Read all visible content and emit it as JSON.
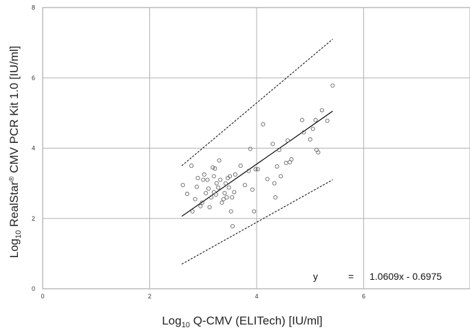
{
  "chart_data": {
    "type": "scatter",
    "xlabel": {
      "base": "Log",
      "sub": "10",
      "rest": " Q-CMV (ELITech) [IU/ml]"
    },
    "ylabel": {
      "base": "Log",
      "sub": "10",
      "mid": " RealStar",
      "sup": "®",
      "rest": " CMV PCR Kit 1.0 [IU/ml]"
    },
    "xlim": [
      0,
      8
    ],
    "ylim": [
      0,
      8
    ],
    "x_ticks": [
      "0",
      "2",
      "4",
      "6"
    ],
    "y_ticks": [
      "0",
      "2",
      "4",
      "6",
      "8"
    ],
    "grid": true,
    "colors": {
      "points": "#666666",
      "regression": "#111111",
      "limits": "#222222",
      "grid": "#b0b0b0"
    },
    "equation": {
      "lhs": "y",
      "op": "=",
      "rhs": "1.0609x - 0.6975"
    },
    "regression": {
      "slope": 1.0609,
      "intercept": -0.6975,
      "x_range": [
        2.6,
        5.42
      ]
    },
    "limit_upper": {
      "points": [
        [
          2.6,
          3.5
        ],
        [
          5.42,
          7.1
        ]
      ]
    },
    "limit_lower": {
      "points": [
        [
          2.6,
          0.7
        ],
        [
          5.42,
          3.1
        ]
      ]
    },
    "points": [
      [
        2.62,
        2.95
      ],
      [
        2.7,
        2.7
      ],
      [
        2.78,
        3.5
      ],
      [
        2.8,
        2.2
      ],
      [
        2.85,
        2.55
      ],
      [
        2.88,
        2.9
      ],
      [
        2.9,
        3.15
      ],
      [
        2.95,
        2.35
      ],
      [
        2.98,
        2.45
      ],
      [
        3.0,
        3.1
      ],
      [
        3.02,
        3.25
      ],
      [
        3.05,
        2.72
      ],
      [
        3.08,
        3.1
      ],
      [
        3.1,
        2.85
      ],
      [
        3.12,
        2.32
      ],
      [
        3.15,
        2.6
      ],
      [
        3.18,
        3.45
      ],
      [
        3.2,
        3.2
      ],
      [
        3.2,
        2.75
      ],
      [
        3.22,
        3.42
      ],
      [
        3.24,
        2.68
      ],
      [
        3.25,
        3.0
      ],
      [
        3.28,
        2.88
      ],
      [
        3.3,
        3.65
      ],
      [
        3.32,
        3.1
      ],
      [
        3.35,
        2.45
      ],
      [
        3.38,
        2.55
      ],
      [
        3.4,
        2.72
      ],
      [
        3.42,
        3.0
      ],
      [
        3.44,
        2.6
      ],
      [
        3.46,
        3.15
      ],
      [
        3.48,
        2.88
      ],
      [
        3.5,
        3.2
      ],
      [
        3.52,
        2.2
      ],
      [
        3.54,
        2.6
      ],
      [
        3.55,
        1.78
      ],
      [
        3.58,
        2.75
      ],
      [
        3.6,
        3.25
      ],
      [
        3.7,
        3.5
      ],
      [
        3.78,
        2.95
      ],
      [
        3.85,
        3.35
      ],
      [
        3.88,
        3.98
      ],
      [
        3.92,
        2.82
      ],
      [
        3.95,
        2.2
      ],
      [
        3.98,
        3.4
      ],
      [
        4.02,
        3.4
      ],
      [
        4.12,
        4.68
      ],
      [
        4.2,
        3.12
      ],
      [
        4.3,
        4.12
      ],
      [
        4.33,
        3.0
      ],
      [
        4.35,
        2.6
      ],
      [
        4.38,
        3.48
      ],
      [
        4.42,
        3.95
      ],
      [
        4.45,
        3.2
      ],
      [
        4.55,
        3.58
      ],
      [
        4.58,
        4.22
      ],
      [
        4.62,
        3.6
      ],
      [
        4.65,
        3.68
      ],
      [
        4.85,
        4.8
      ],
      [
        4.88,
        4.45
      ],
      [
        5.0,
        4.25
      ],
      [
        5.05,
        4.55
      ],
      [
        5.1,
        4.8
      ],
      [
        5.12,
        3.95
      ],
      [
        5.15,
        3.88
      ],
      [
        5.22,
        5.08
      ],
      [
        5.32,
        4.78
      ],
      [
        5.42,
        5.78
      ]
    ]
  }
}
